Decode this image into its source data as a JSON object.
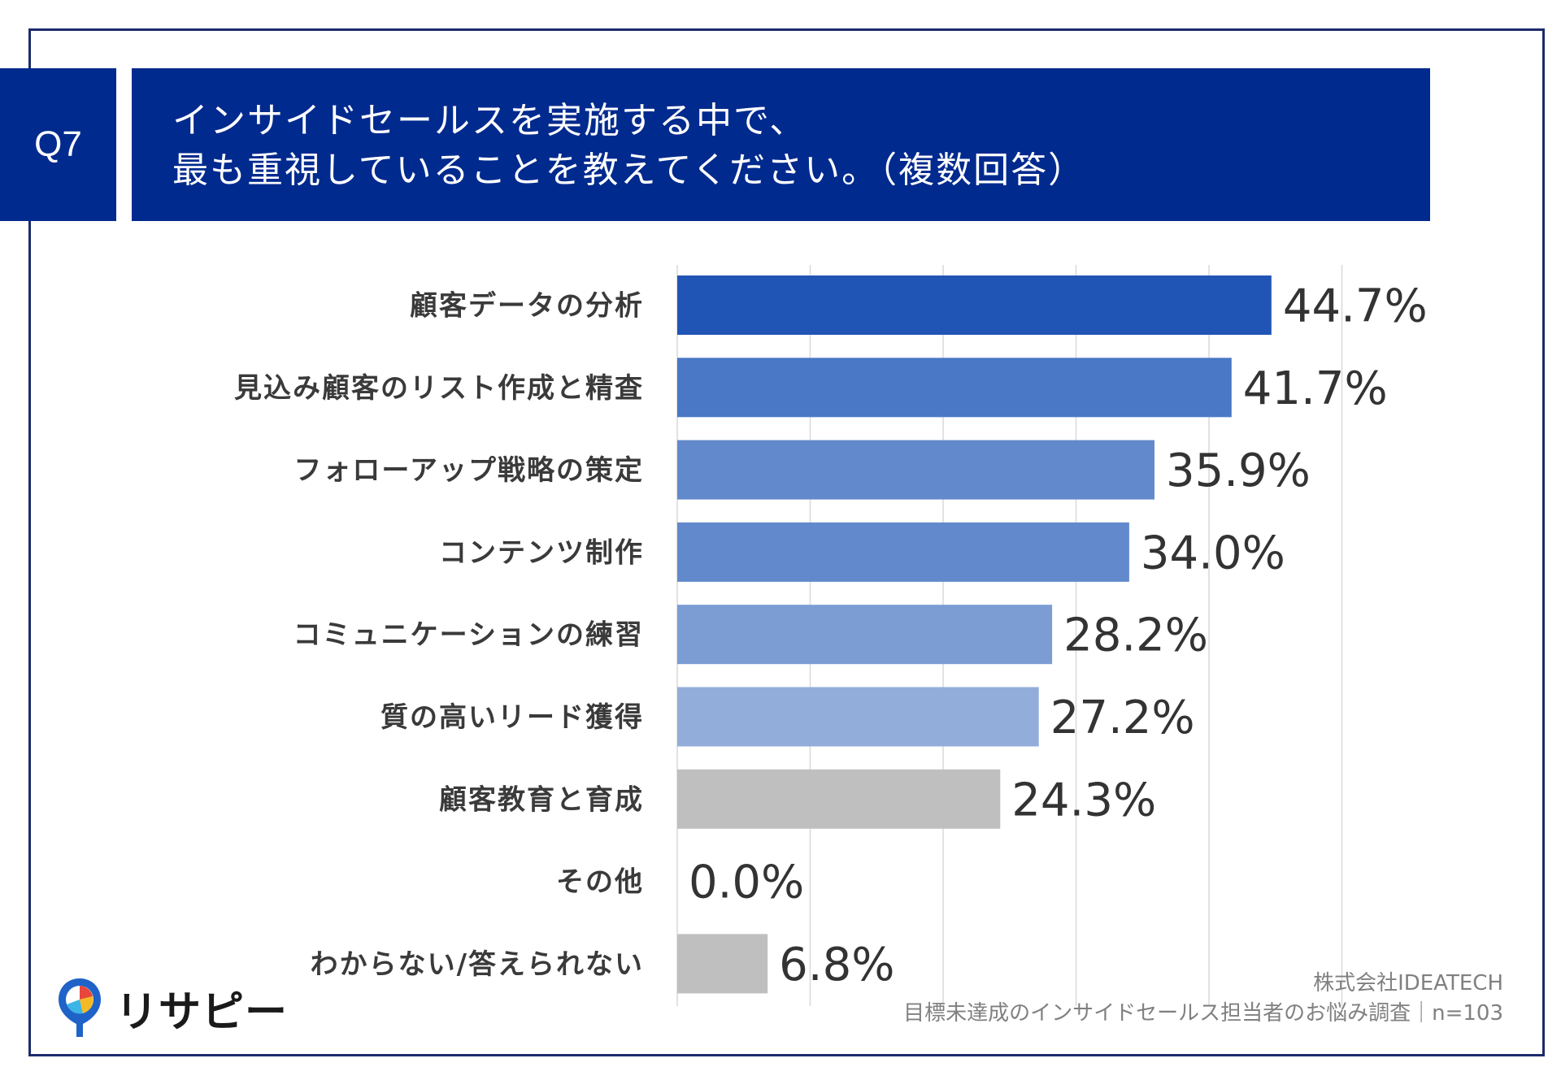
{
  "question": {
    "number": "Q7",
    "title_line1": "インサイドセールスを実施する中で、",
    "title_line2": "最も重視していることを教えてください。（複数回答）"
  },
  "chart_data": {
    "type": "bar",
    "orientation": "horizontal",
    "categories": [
      "顧客データの分析",
      "見込み顧客のリスト作成と精査",
      "フォローアップ戦略の策定",
      "コンテンツ制作",
      "コミュニケーションの練習",
      "質の高いリード獲得",
      "顧客教育と育成",
      "その他",
      "わからない/答えられない"
    ],
    "values": [
      44.7,
      41.7,
      35.9,
      34.0,
      28.2,
      27.2,
      24.3,
      0.0,
      6.8
    ],
    "value_labels": [
      "44.7%",
      "41.7%",
      "35.9%",
      "34.0%",
      "28.2%",
      "27.2%",
      "24.3%",
      "0.0%",
      "6.8%"
    ],
    "bar_colors": [
      "#2155b5",
      "#4a77c6",
      "#6189cc",
      "#6189cc",
      "#7b9dd4",
      "#93addb",
      "#bfbfbf",
      "#bfbfbf",
      "#bfbfbf"
    ],
    "xlim": [
      0,
      50
    ],
    "grid": true,
    "unit": "%"
  },
  "brand": {
    "logo_text": "リサピー"
  },
  "source": {
    "line1": "株式会社IDEATECH",
    "line2": "目標未達成のインサイドセールス担当者のお悩み調査｜n=103"
  }
}
